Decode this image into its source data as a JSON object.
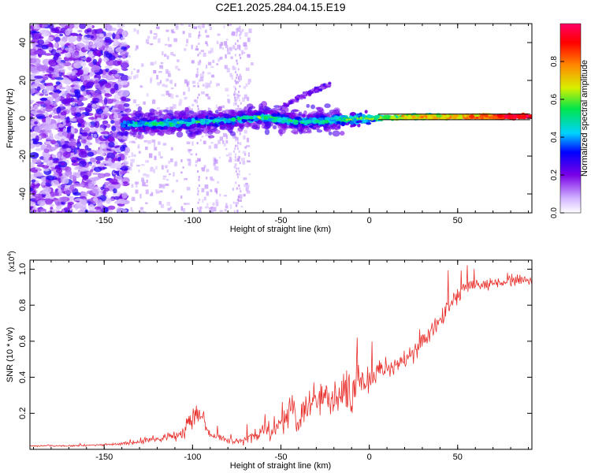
{
  "title": "C2E1.2025.284.04.15.E19",
  "chart_data": [
    {
      "type": "heatmap",
      "xlabel": "Height of straight line (km)",
      "ylabel": "Frequency (Hz)",
      "xlim": [
        -192,
        92
      ],
      "ylim": [
        -50,
        50
      ],
      "xticks": [
        -150,
        -100,
        -50,
        0,
        50
      ],
      "xtick_labels": [
        "-150",
        "-100",
        "-50",
        "0",
        "50"
      ],
      "yticks": [
        -40,
        -20,
        0,
        20,
        40
      ],
      "ytick_labels": [
        "-40",
        "-20",
        "0",
        "20",
        "40"
      ],
      "grid": false,
      "colorbar": {
        "label": "Normalized spectral amplitude",
        "range": [
          0,
          1
        ],
        "ticks": [
          0,
          0.2,
          0.4,
          0.6,
          0.8
        ],
        "tick_labels": [
          "0.0",
          "0.2",
          "0.4",
          "0.6",
          "0.8"
        ],
        "colors": [
          "#ffffff",
          "#7a00e6",
          "#0000ff",
          "#00d2ff",
          "#00e64a",
          "#f0f000",
          "#ff8800",
          "#ff0000",
          "#ff0066"
        ]
      },
      "ridge": {
        "x": [
          -140,
          -120,
          -100,
          -80,
          -60,
          -40,
          -20,
          0,
          20,
          50,
          90
        ],
        "y": [
          -3,
          -3,
          -2,
          -1,
          0.5,
          -2,
          -1,
          0,
          0.5,
          0.8,
          1.0
        ],
        "intensity": [
          0.45,
          0.55,
          0.5,
          0.5,
          0.55,
          0.5,
          0.55,
          0.6,
          0.7,
          0.8,
          1.0
        ]
      },
      "branch": {
        "x": [
          -50,
          -40,
          -30,
          -22
        ],
        "y": [
          5,
          11,
          15,
          18
        ]
      }
    },
    {
      "type": "line",
      "xlabel": "Height of straight line (km)",
      "ylabel": "SNR (10 * v/v)",
      "multiplier": "(x10",
      "multiplier_exp": "4",
      "xlim": [
        -192,
        92
      ],
      "ylim": [
        0,
        1.05
      ],
      "xticks": [
        -150,
        -100,
        -50,
        0,
        50
      ],
      "xtick_labels": [
        "-150",
        "-100",
        "-50",
        "0",
        "50"
      ],
      "yticks": [
        0.2,
        0.4,
        0.6,
        0.8,
        1.0
      ],
      "ytick_labels": [
        "0.2",
        "0.4",
        "0.6",
        "0.8",
        "1.0"
      ],
      "grid": false,
      "series": [
        {
          "name": "SNR",
          "color": "#e8302c",
          "x": [
            -192,
            -170,
            -150,
            -140,
            -130,
            -120,
            -110,
            -104,
            -100,
            -97,
            -94,
            -90,
            -80,
            -70,
            -60,
            -50,
            -45,
            -40,
            -35,
            -30,
            -25,
            -20,
            -15,
            -10,
            -5,
            0,
            5,
            10,
            15,
            20,
            25,
            30,
            35,
            40,
            45,
            50,
            55,
            60,
            65,
            70,
            75,
            80,
            85,
            92
          ],
          "y": [
            0.02,
            0.02,
            0.025,
            0.03,
            0.04,
            0.06,
            0.07,
            0.1,
            0.17,
            0.22,
            0.16,
            0.08,
            0.05,
            0.05,
            0.1,
            0.15,
            0.22,
            0.2,
            0.24,
            0.27,
            0.26,
            0.28,
            0.32,
            0.33,
            0.36,
            0.4,
            0.42,
            0.44,
            0.47,
            0.5,
            0.53,
            0.6,
            0.66,
            0.72,
            0.78,
            0.86,
            0.9,
            0.92,
            0.91,
            0.93,
            0.92,
            0.93,
            0.94,
            0.94
          ],
          "noise": [
            0.004,
            0.005,
            0.006,
            0.008,
            0.015,
            0.02,
            0.03,
            0.05,
            0.08,
            0.07,
            0.05,
            0.03,
            0.02,
            0.03,
            0.06,
            0.09,
            0.12,
            0.1,
            0.12,
            0.12,
            0.11,
            0.12,
            0.12,
            0.12,
            0.09,
            0.08,
            0.07,
            0.07,
            0.07,
            0.07,
            0.07,
            0.06,
            0.06,
            0.06,
            0.06,
            0.06,
            0.05,
            0.04,
            0.035,
            0.035,
            0.035,
            0.035,
            0.035,
            0.03
          ]
        }
      ]
    }
  ]
}
